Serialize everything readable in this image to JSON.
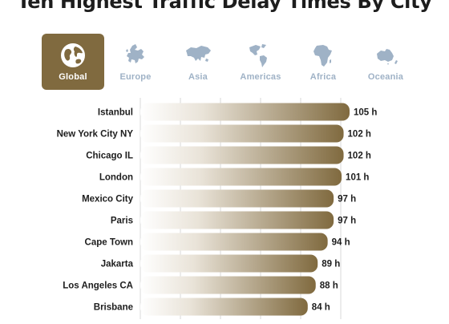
{
  "title": "Ten Highest Traffic Delay Times By City",
  "tabs": [
    {
      "label": "Global",
      "icon": "globe-icon",
      "active": true
    },
    {
      "label": "Europe",
      "icon": "europe-map-icon",
      "active": false
    },
    {
      "label": "Asia",
      "icon": "asia-map-icon",
      "active": false
    },
    {
      "label": "Americas",
      "icon": "americas-map-icon",
      "active": false
    },
    {
      "label": "Africa",
      "icon": "africa-map-icon",
      "active": false
    },
    {
      "label": "Oceania",
      "icon": "oceania-map-icon",
      "active": false
    }
  ],
  "colors": {
    "accent": "#806a3f",
    "inactive_tab": "#9fb2c6",
    "gridline": "#d9d9d9"
  },
  "chart_data": {
    "type": "bar",
    "orientation": "horizontal",
    "categories": [
      "Istanbul",
      "New York City NY",
      "Chicago IL",
      "London",
      "Mexico City",
      "Paris",
      "Cape Town",
      "Jakarta",
      "Los Angeles CA",
      "Brisbane"
    ],
    "values": [
      105,
      102,
      102,
      101,
      97,
      97,
      94,
      89,
      88,
      84
    ],
    "value_labels": [
      "105 h",
      "102 h",
      "102 h",
      "101 h",
      "97 h",
      "97 h",
      "94 h",
      "89 h",
      "88 h",
      "84 h"
    ],
    "unit": "h",
    "xlim": [
      0,
      105
    ],
    "grid": true
  }
}
